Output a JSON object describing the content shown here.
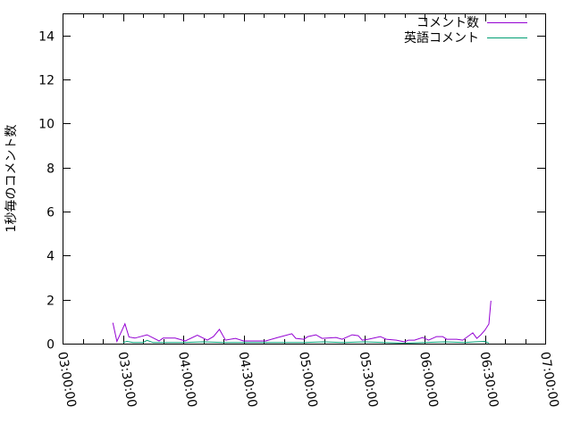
{
  "chart_data": {
    "type": "line",
    "ylabel": "1秒毎のコメント数",
    "xlabel": "",
    "xlim": [
      "03:00:00",
      "07:00:00"
    ],
    "ylim": [
      0,
      15
    ],
    "x_ticks": [
      "03:00:00",
      "03:30:00",
      "04:00:00",
      "04:30:00",
      "05:00:00",
      "05:30:00",
      "06:00:00",
      "06:30:00",
      "07:00:00"
    ],
    "y_ticks": [
      0,
      2,
      4,
      6,
      8,
      10,
      12,
      14
    ],
    "grid": false,
    "legend_position": "top-right",
    "series": [
      {
        "name": "コメント数",
        "color": "#9400d3",
        "x": [
          "03:25",
          "03:27",
          "03:31",
          "03:33",
          "03:36",
          "03:42",
          "03:48",
          "03:50",
          "03:56",
          "04:01",
          "04:07",
          "04:12",
          "04:15",
          "04:18",
          "04:21",
          "04:26",
          "04:30",
          "04:36",
          "04:41",
          "04:47",
          "04:54",
          "04:56",
          "05:00",
          "05:02",
          "05:06",
          "05:09",
          "05:16",
          "05:19",
          "05:24",
          "05:27",
          "05:29",
          "05:32",
          "05:38",
          "05:41",
          "05:46",
          "05:50",
          "05:52",
          "05:55",
          "05:59",
          "06:02",
          "06:06",
          "06:09",
          "06:11",
          "06:16",
          "06:19",
          "06:24",
          "06:26",
          "06:28",
          "06:30",
          "06:32",
          "06:33"
        ],
        "values": [
          0.95,
          0.1,
          0.9,
          0.3,
          0.25,
          0.4,
          0.12,
          0.25,
          0.25,
          0.12,
          0.38,
          0.16,
          0.32,
          0.65,
          0.16,
          0.24,
          0.12,
          0.12,
          0.12,
          0.28,
          0.45,
          0.24,
          0.2,
          0.32,
          0.4,
          0.24,
          0.28,
          0.2,
          0.4,
          0.36,
          0.16,
          0.2,
          0.32,
          0.2,
          0.16,
          0.08,
          0.16,
          0.16,
          0.28,
          0.16,
          0.32,
          0.32,
          0.2,
          0.2,
          0.16,
          0.49,
          0.24,
          0.4,
          0.61,
          0.89,
          1.95
        ]
      },
      {
        "name": "英語コメント",
        "color": "#009e73",
        "x": [
          "03:30",
          "03:32",
          "03:35",
          "03:40",
          "03:42",
          "03:45",
          "03:50",
          "04:00",
          "04:10",
          "04:20",
          "04:30",
          "04:40",
          "04:50",
          "05:00",
          "05:10",
          "05:20",
          "05:30",
          "05:40",
          "05:50",
          "06:00",
          "06:10",
          "06:20",
          "06:25",
          "06:30",
          "06:32"
        ],
        "values": [
          0.05,
          0.1,
          0.05,
          0.05,
          0.15,
          0.05,
          0.05,
          0.05,
          0.08,
          0.05,
          0.05,
          0.05,
          0.05,
          0.05,
          0.08,
          0.05,
          0.08,
          0.05,
          0.02,
          0.05,
          0.08,
          0.05,
          0.08,
          0.1,
          0.03
        ]
      }
    ]
  }
}
